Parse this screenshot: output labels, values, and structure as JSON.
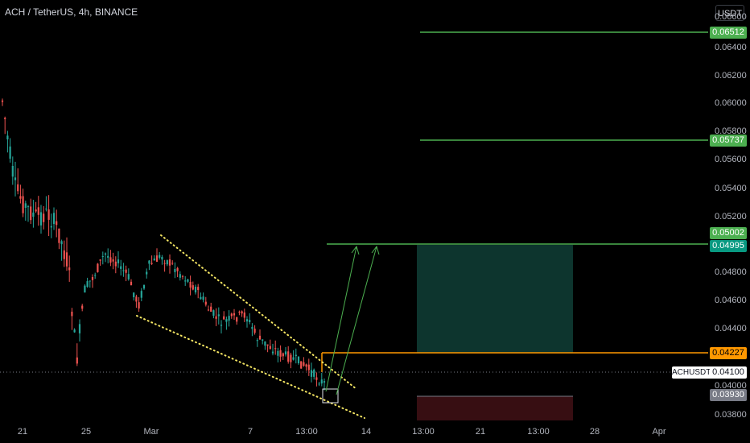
{
  "header": {
    "title": "ACH / TetherUS, 4h, BINANCE",
    "currency_button": "USDT"
  },
  "price_axis": {
    "ticks": [
      "0.06600",
      "0.06400",
      "0.06200",
      "0.06000",
      "0.05800",
      "0.05600",
      "0.05400",
      "0.05200",
      "0.04800",
      "0.04600",
      "0.04400",
      "0.04000",
      "0.03800"
    ]
  },
  "time_axis": {
    "ticks": [
      "21",
      "25",
      "Mar",
      "7",
      "13:00",
      "14",
      "13:00",
      "21",
      "13:00",
      "28",
      "Apr"
    ]
  },
  "price_tags": {
    "target_high": {
      "text": "0.06512",
      "color": "#4caf50"
    },
    "target_mid": {
      "text": "0.05737",
      "color": "#4caf50"
    },
    "target_low": {
      "text": "0.05002",
      "color": "#4caf50"
    },
    "take_profit": {
      "text": "0.04995",
      "color": "#089981"
    },
    "entry": {
      "text": "0.04227",
      "color": "#ff9800"
    },
    "last_price": {
      "text": "0.04100",
      "symbol": "ACHUSDT"
    },
    "stop": {
      "text": "0.03930",
      "color": "#787b86"
    }
  },
  "colors": {
    "up": "#26a69a",
    "down": "#ef5350",
    "wedge": "#f5e663",
    "profit_zone": "#0e3b33",
    "loss_zone": "#3d0f14"
  }
}
